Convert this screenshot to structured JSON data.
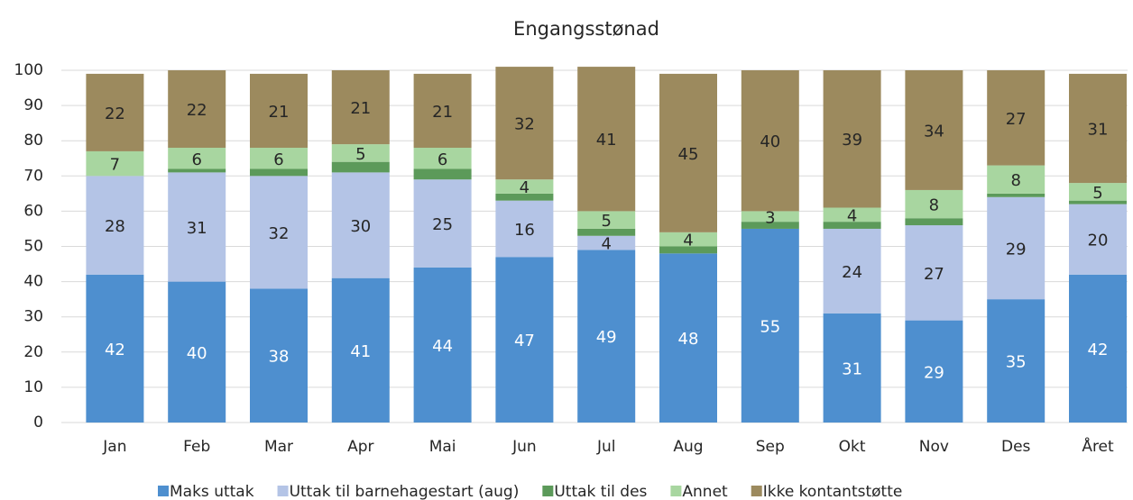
{
  "chart_data": {
    "type": "stacked_bar",
    "title": "Engangsstønad",
    "categories": [
      "Jan",
      "Feb",
      "Mar",
      "Apr",
      "Mai",
      "Jun",
      "Jul",
      "Aug",
      "Sep",
      "Okt",
      "Nov",
      "Des",
      "Året"
    ],
    "series": [
      {
        "name": "Maks uttak",
        "color": "#4e8fcf",
        "data_labels": true,
        "label_color": "#ffffff",
        "values": [
          42,
          40,
          38,
          41,
          44,
          47,
          49,
          48,
          55,
          31,
          29,
          35,
          42
        ]
      },
      {
        "name": "Uttak til barnehagestart (aug)",
        "color": "#b4c4e6",
        "data_labels": true,
        "label_color": "#262626",
        "values": [
          28,
          31,
          32,
          30,
          25,
          16,
          4,
          0,
          0,
          24,
          27,
          29,
          20
        ]
      },
      {
        "name": "Uttak til des",
        "color": "#5c9a5a",
        "data_labels": false,
        "label_color": "#262626",
        "values": [
          0,
          1,
          2,
          3,
          3,
          2,
          2,
          2,
          2,
          2,
          2,
          1,
          1
        ]
      },
      {
        "name": "Annet",
        "color": "#a8d6a0",
        "data_labels": true,
        "label_color": "#262626",
        "values": [
          7,
          6,
          6,
          5,
          6,
          4,
          5,
          4,
          3,
          4,
          8,
          8,
          5
        ]
      },
      {
        "name": "Ikke kontantstøtte",
        "color": "#9c8a5e",
        "data_labels": true,
        "label_color": "#262626",
        "values": [
          22,
          22,
          21,
          21,
          21,
          32,
          41,
          45,
          40,
          39,
          34,
          27,
          31
        ]
      }
    ],
    "ylim": [
      0,
      100
    ],
    "yticks": [
      0,
      10,
      20,
      30,
      40,
      50,
      60,
      70,
      80,
      90,
      100
    ],
    "grid": true,
    "legend": "bottom"
  }
}
